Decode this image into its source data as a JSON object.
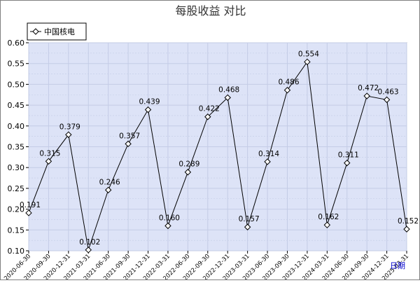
{
  "chart_data": {
    "type": "line",
    "title": "每股收益  对比",
    "xlabel": "日期",
    "ylabel": "",
    "ylim": [
      0.1,
      0.6
    ],
    "yticks": [
      "0.10",
      "0.15",
      "0.20",
      "0.25",
      "0.30",
      "0.35",
      "0.40",
      "0.45",
      "0.50",
      "0.55",
      "0.60"
    ],
    "grid": true,
    "legend_position": "top-left",
    "categories": [
      "2020-06-30",
      "2020-09-30",
      "2020-12-31",
      "2021-03-31",
      "2021-06-30",
      "2021-09-30",
      "2021-12-31",
      "2022-03-31",
      "2022-06-30",
      "2022-09-30",
      "2022-12-31",
      "2023-03-31",
      "2023-06-30",
      "2023-09-30",
      "2023-12-31",
      "2024-03-31",
      "2024-06-30",
      "2024-09-30",
      "2024-12-31",
      "2025-03-31"
    ],
    "series": [
      {
        "name": "中国核电",
        "values": [
          0.191,
          0.315,
          0.379,
          0.102,
          0.246,
          0.357,
          0.439,
          0.16,
          0.289,
          0.422,
          0.468,
          0.157,
          0.314,
          0.486,
          0.554,
          0.162,
          0.311,
          0.472,
          0.463,
          0.152
        ],
        "labels": [
          "0.191",
          "0.315",
          "0.379",
          "0.102",
          "0.246",
          "0.357",
          "0.439",
          "0.160",
          "0.289",
          "0.422",
          "0.468",
          "0.157",
          "0.314",
          "0.486",
          "0.554",
          "0.162",
          "0.311",
          "0.472",
          "0.463",
          "0.152"
        ]
      }
    ],
    "colors": {
      "plot_background": "#dde3f7",
      "grid": "#c4cce6",
      "line": "#000000",
      "axis_title": "#0000cc"
    }
  }
}
